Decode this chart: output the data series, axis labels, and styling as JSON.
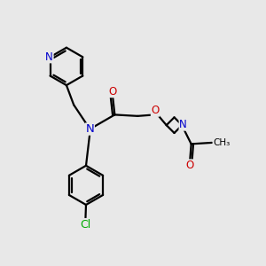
{
  "bg_color": "#e8e8e8",
  "bond_color": "#000000",
  "bond_width": 1.6,
  "atom_colors": {
    "N": "#0000cc",
    "O": "#cc0000",
    "Cl": "#00aa00",
    "C": "#000000"
  },
  "font_size_atom": 8.5
}
